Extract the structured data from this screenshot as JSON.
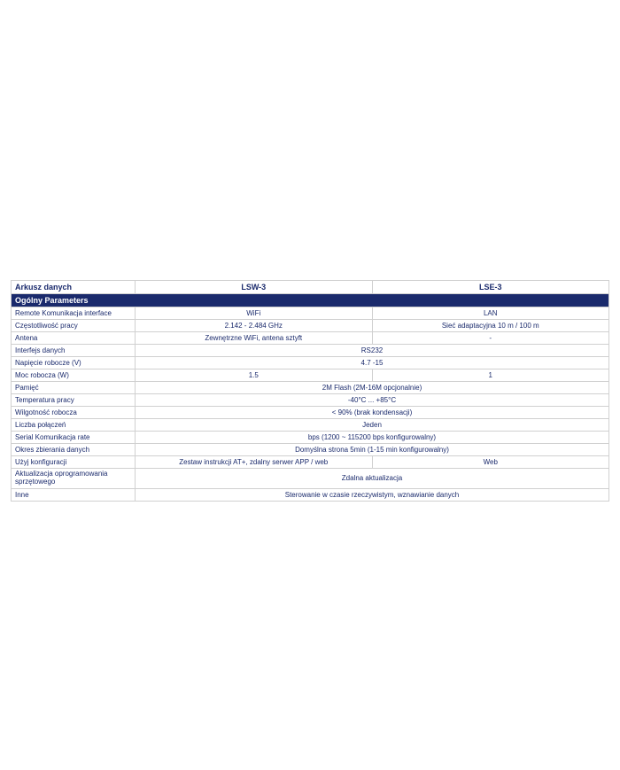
{
  "table": {
    "header": {
      "label": "Arkusz danych",
      "col1": "LSW-3",
      "col2": "LSE-3"
    },
    "section_title": "Ogólny Parameters",
    "rows": [
      {
        "label": "Remote Komunikacja interface",
        "v1": "WiFi",
        "v2": "LAN",
        "span": false
      },
      {
        "label": "Częstotliwość pracy",
        "v1": "2.142 - 2.484 GHz",
        "v2": "Sieć adaptacyjna 10 m / 100 m",
        "span": false
      },
      {
        "label": "Antena",
        "v1": "Zewnętrzne WiFi, antena sztyft",
        "v2": "-",
        "span": false
      },
      {
        "label": "Interfejs danych",
        "v1": "RS232",
        "span": true
      },
      {
        "label": "Napięcie robocze (V)",
        "v1": "4.7 -15",
        "span": true
      },
      {
        "label": "Moc robocza (W)",
        "v1": "1.5",
        "v2": "1",
        "span": false
      },
      {
        "label": "Pamięć",
        "v1": "2M Flash (2M-16M opcjonalnie)",
        "span": true
      },
      {
        "label": "Temperatura pracy",
        "v1": "-40°C ... +85°C",
        "span": true
      },
      {
        "label": "Wilgotność robocza",
        "v1": "< 90% (brak kondensacji)",
        "span": true
      },
      {
        "label": "Liczba połączeń",
        "v1": "Jeden",
        "span": true
      },
      {
        "label": "Serial Komunikacja rate",
        "v1": "bps (1200 ~ 115200 bps konfigurowalny)",
        "span": true
      },
      {
        "label": "Okres zbierania danych",
        "v1": "Domyślna strona 5min (1-15 min konfigurowalny)",
        "span": true
      },
      {
        "label": "Użyj konfiguracji",
        "v1": "Zestaw instrukcji AT+, zdalny serwer APP / web",
        "v2": "Web",
        "span": false
      },
      {
        "label": "Aktualizacja oprogramowania sprzętowego",
        "v1": "Zdalna aktualizacja",
        "span": true,
        "wrap": true
      },
      {
        "label": "Inne",
        "v1": "Sterowanie w czasie rzeczywistym, wznawianie danych",
        "span": true
      }
    ],
    "colors": {
      "section_bg": "#1a2a6c",
      "section_fg": "#ffffff",
      "border": "#d0d0d0",
      "text": "#1a2a6c",
      "bg": "#ffffff"
    }
  }
}
